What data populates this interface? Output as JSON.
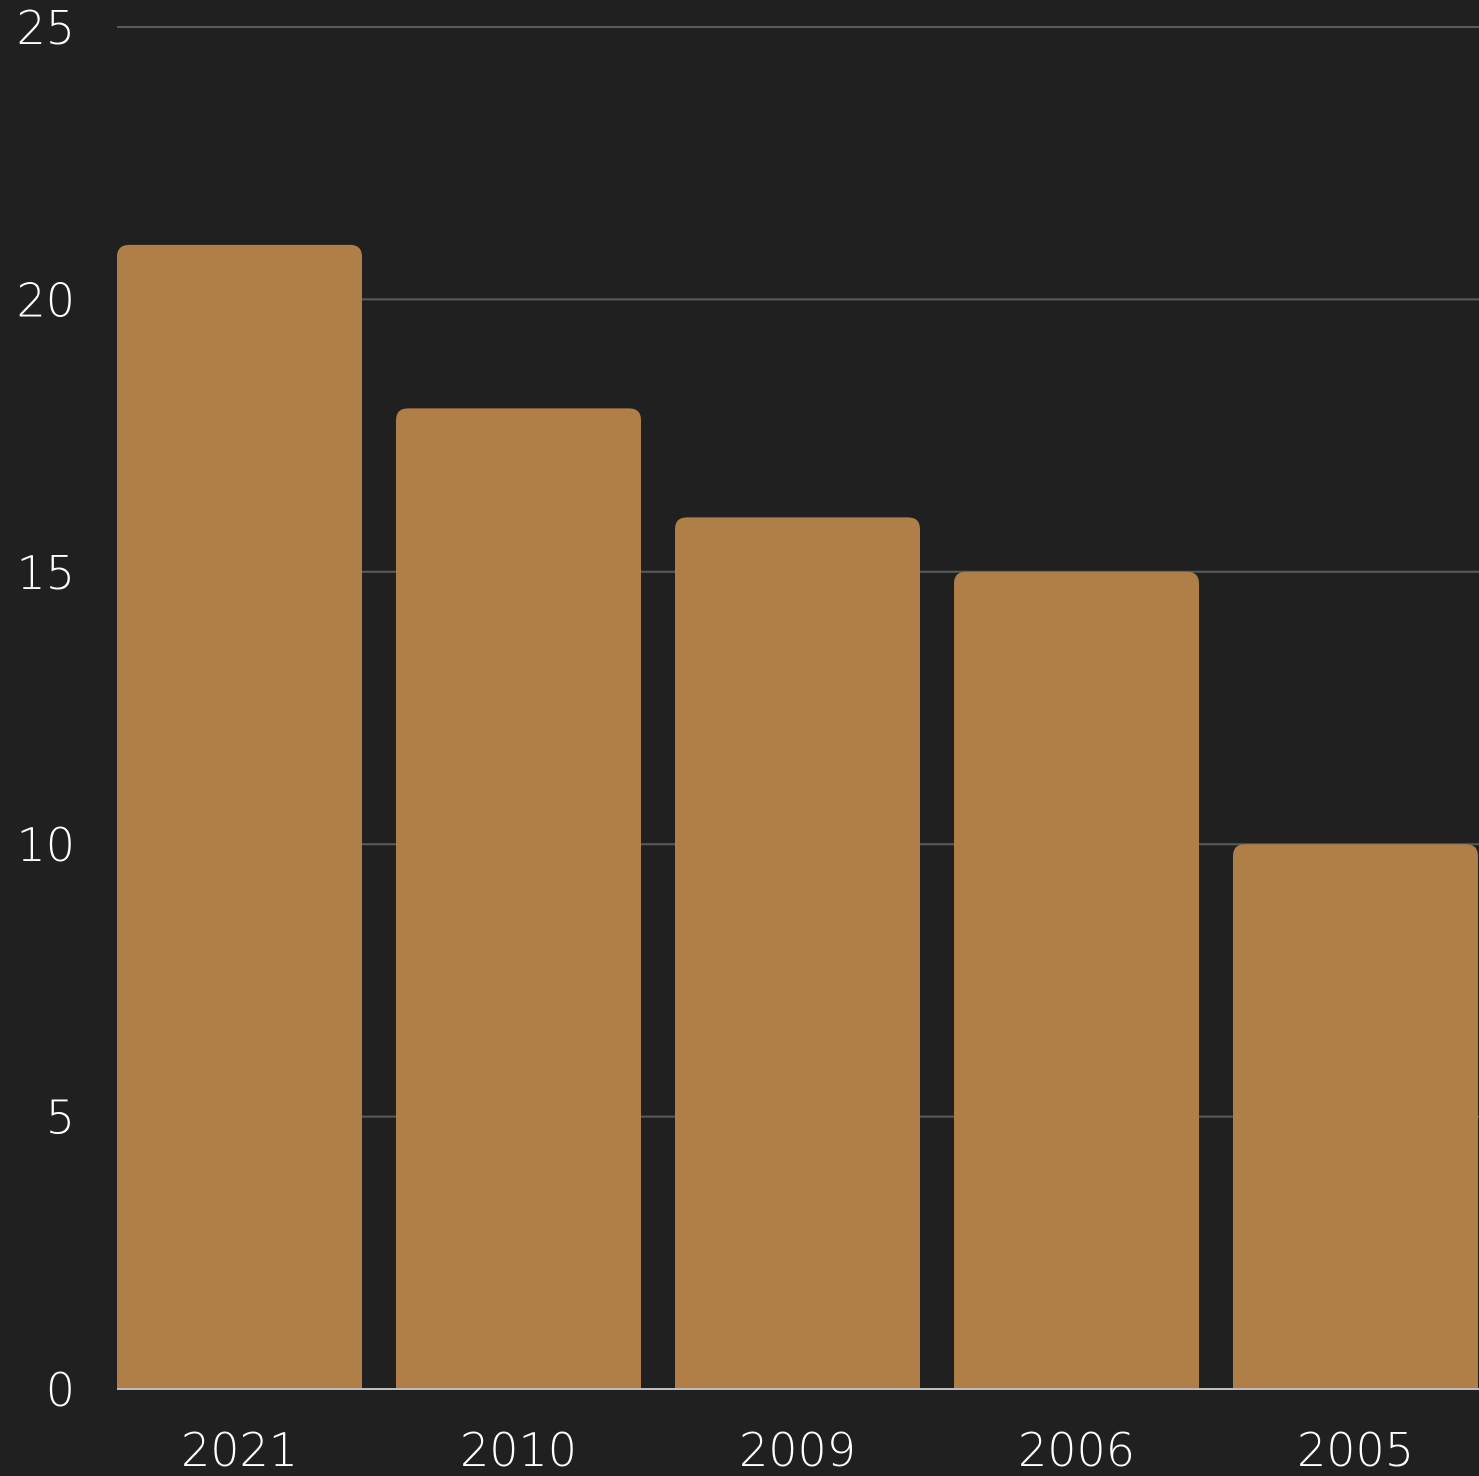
{
  "chart_data": {
    "type": "bar",
    "categories": [
      "2021",
      "2010",
      "2009",
      "2006",
      "2005"
    ],
    "values": [
      21,
      18,
      16,
      15,
      10
    ],
    "y_ticks": [
      "0",
      "5",
      "10",
      "15",
      "20",
      "25"
    ],
    "ylim": [
      0,
      25
    ],
    "grid": true,
    "legend": "none",
    "bar_color": "#b07f48",
    "background_color": "#202020",
    "grid_color": "#5a5a5a",
    "text_color": "#ffffff"
  }
}
